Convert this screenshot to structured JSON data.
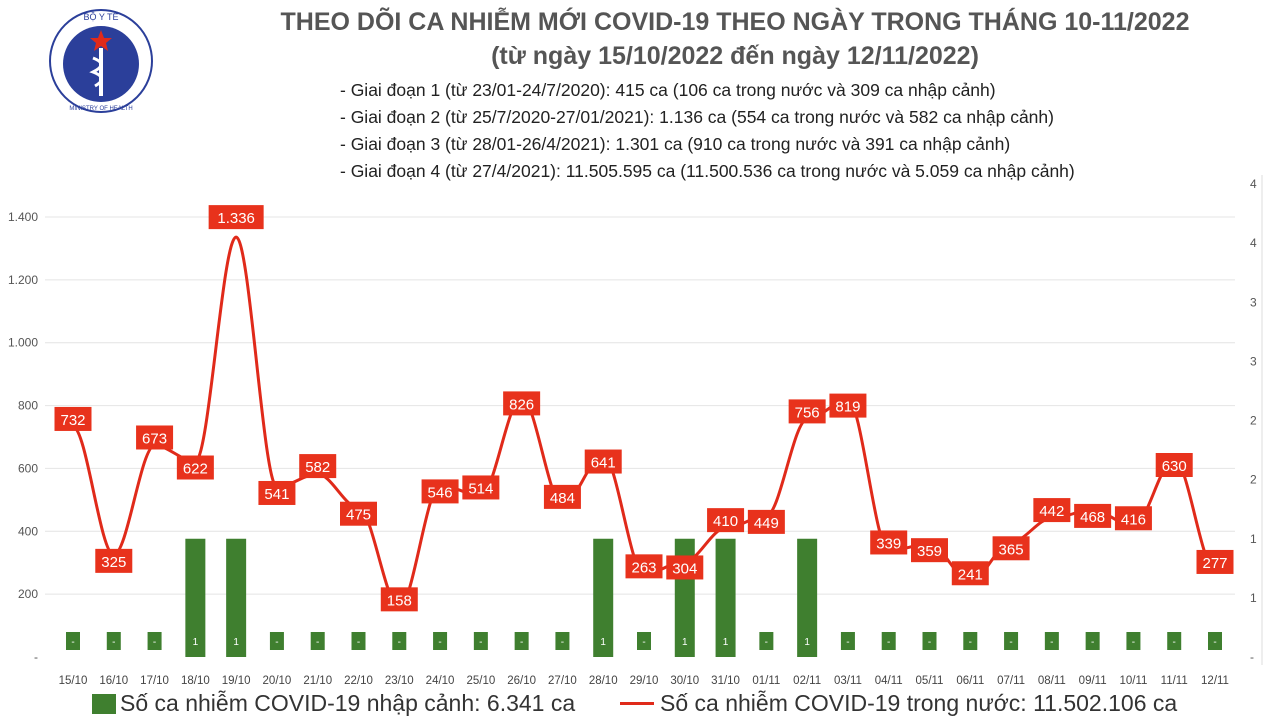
{
  "header": {
    "title": "THEO DÕI CA NHIỄM MỚI COVID-19 THEO NGÀY TRONG THÁNG 10-11/2022",
    "subtitle": "(từ ngày 15/10/2022 đến ngày 12/11/2022)",
    "phases": [
      "- Giai đoạn 1 (từ 23/01-24/7/2020): 415 ca (106 ca trong nước và 309 ca nhập cảnh)",
      "- Giai đoạn 2 (từ 25/7/2020-27/01/2021): 1.136 ca (554 ca trong nước và 582 ca nhập cảnh)",
      "- Giai đoạn 3 (từ 28/01-26/4/2021): 1.301 ca (910 ca trong nước và 391 ca nhập cảnh)",
      "- Giai đoạn 4 (từ 27/4/2021): 11.505.595 ca (11.500.536 ca trong nước và 5.059 ca nhập cảnh)"
    ]
  },
  "logo": {
    "text_top": "BỘ Y TẾ",
    "text_bottom": "MINISTRY OF HEALTH"
  },
  "chart_data": {
    "type": "bar+line",
    "categories": [
      "15/10",
      "16/10",
      "17/10",
      "18/10",
      "19/10",
      "20/10",
      "21/10",
      "22/10",
      "23/10",
      "24/10",
      "25/10",
      "26/10",
      "27/10",
      "28/10",
      "29/10",
      "30/10",
      "31/10",
      "01/11",
      "02/11",
      "03/11",
      "04/11",
      "05/11",
      "06/11",
      "07/11",
      "08/11",
      "09/11",
      "10/11",
      "11/11",
      "12/11"
    ],
    "series": [
      {
        "name": "Số ca nhiễm COVID-19 nhập cảnh: 6.341 ca",
        "type": "bar",
        "axis": "right",
        "color": "#3f7f2f",
        "values": [
          0,
          0,
          0,
          1,
          1,
          0,
          0,
          0,
          0,
          0,
          0,
          0,
          0,
          1,
          0,
          1,
          1,
          0,
          1,
          0,
          0,
          0,
          0,
          0,
          0,
          0,
          0,
          0,
          0
        ]
      },
      {
        "name": "Số ca nhiễm COVID-19 trong nước: 11.502.106 ca",
        "type": "line",
        "axis": "left",
        "color": "#e02a1a",
        "values": [
          732,
          325,
          673,
          622,
          1336,
          541,
          582,
          475,
          158,
          546,
          514,
          826,
          484,
          641,
          263,
          304,
          410,
          449,
          756,
          819,
          339,
          359,
          241,
          365,
          442,
          468,
          416,
          630,
          277
        ]
      }
    ],
    "left_axis": {
      "ylim": [
        0,
        1400
      ],
      "ticks": [
        "-",
        "200",
        "400",
        "600",
        "800",
        "1.000",
        "1.200",
        "1.400"
      ]
    },
    "right_axis": {
      "ylim": [
        0,
        4
      ],
      "ticks": [
        "-",
        "1",
        "1",
        "2",
        "2",
        "3",
        "3",
        "4",
        "4"
      ]
    },
    "grid": true,
    "legend": "bottom"
  }
}
